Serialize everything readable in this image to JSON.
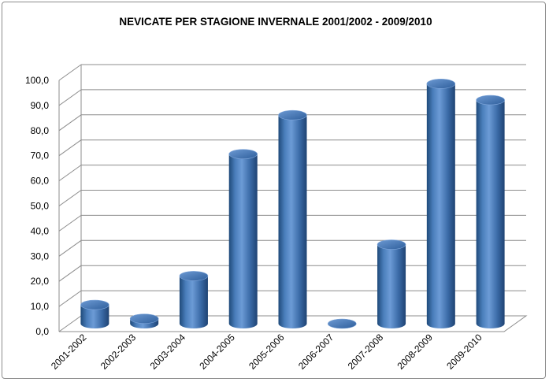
{
  "chart_data": {
    "type": "bar",
    "style": "3d-cylinder",
    "title": "NEVICATE PER STAGIONE INVERNALE 2001/2002 - 2009/2010",
    "xlabel": "",
    "ylabel": "",
    "categories": [
      "2001-2002",
      "2002-2003",
      "2003-2004",
      "2004-2005",
      "2005-2006",
      "2006-2007",
      "2007-2008",
      "2008-2009",
      "2009-2010"
    ],
    "series": [
      {
        "values": [
          7.5,
          2.0,
          19.0,
          67.5,
          83.0,
          0.0,
          31.5,
          95.5,
          89.0
        ]
      }
    ],
    "ylim": [
      0,
      100
    ],
    "yticks": [
      "0,0",
      "10,0",
      "20,0",
      "30,0",
      "40,0",
      "50,0",
      "60,0",
      "70,0",
      "80,0",
      "90,0",
      "100,0"
    ],
    "grid": true,
    "legend": "none",
    "colors": {
      "bar": "#4a7ebb",
      "bar_dark": "#1f4a7a",
      "bar_light": "#9cc0ec",
      "grid": "#8c8c8c",
      "frame": "#8c8c8c"
    }
  }
}
